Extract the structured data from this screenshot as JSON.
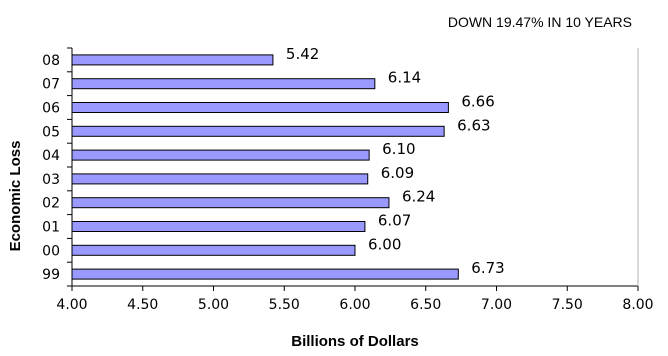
{
  "chart_data": {
    "type": "bar",
    "orientation": "horizontal",
    "annotation": "DOWN 19.47% IN 10 YEARS",
    "xlabel": "Billions of Dollars",
    "ylabel": "Economic Loss",
    "xlim": [
      4.0,
      8.0
    ],
    "x_ticks": [
      "4.00",
      "4.50",
      "5.00",
      "5.50",
      "6.00",
      "6.50",
      "7.00",
      "7.50",
      "8.00"
    ],
    "categories": [
      "08",
      "07",
      "06",
      "05",
      "04",
      "03",
      "02",
      "01",
      "00",
      "99"
    ],
    "values": [
      5.42,
      6.14,
      6.66,
      6.63,
      6.1,
      6.09,
      6.24,
      6.07,
      6.0,
      6.73
    ],
    "value_labels": [
      "5.42",
      "6.14",
      "6.66",
      "6.63",
      "6.10",
      "6.09",
      "6.24",
      "6.07",
      "6.00",
      "6.73"
    ],
    "grid": false,
    "legend": "none",
    "colors": {
      "bar_fill": "#9999ff",
      "bar_stroke": "#000000"
    }
  }
}
